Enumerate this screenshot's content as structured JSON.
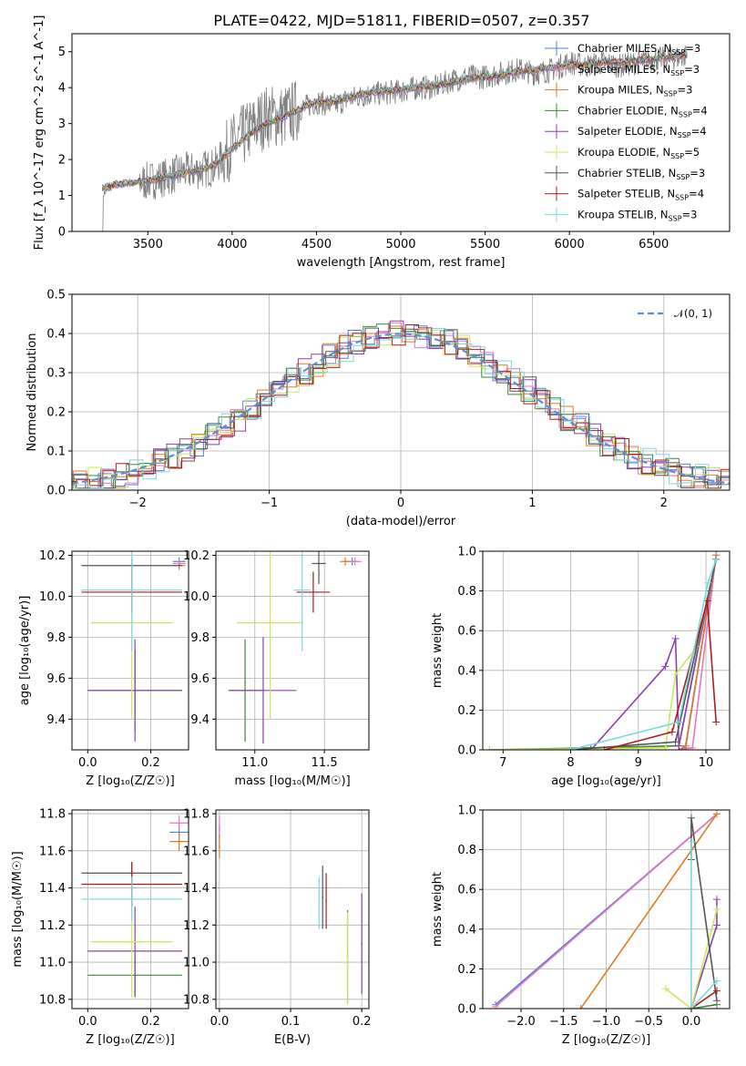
{
  "title": "PLATE=0422, MJD=51811, FIBERID=0507, z=0.357",
  "models": [
    {
      "name": "Chabrier MILES",
      "nssp": "3",
      "color": "#4f7fdc"
    },
    {
      "name": "Salpeter MILES",
      "nssp": "3",
      "color": "#e377c2"
    },
    {
      "name": "Kroupa MILES",
      "nssp": "3",
      "color": "#e07b24"
    },
    {
      "name": "Chabrier ELODIE",
      "nssp": "4",
      "color": "#3a8a3a"
    },
    {
      "name": "Salpeter ELODIE",
      "nssp": "4",
      "color": "#8e3fb0"
    },
    {
      "name": "Kroupa ELODIE",
      "nssp": "5",
      "color": "#c8e85a"
    },
    {
      "name": "Chabrier STELIB",
      "nssp": "3",
      "color": "#555555"
    },
    {
      "name": "Salpeter STELIB",
      "nssp": "4",
      "color": "#b01c1c"
    },
    {
      "name": "Kroupa STELIB",
      "nssp": "3",
      "color": "#7ad8e0"
    }
  ],
  "chart_data": [
    {
      "id": "spectrum",
      "type": "line",
      "xlabel": "wavelength [Angstrom, rest frame]",
      "ylabel": "Flux [f_λ 10^-17 erg cm^-2 s^-1 A^-1]",
      "xlim": [
        3050,
        6950
      ],
      "ylim": [
        0,
        5.5
      ],
      "xticks": [
        3500,
        4000,
        4500,
        5000,
        5500,
        6000,
        6500
      ],
      "yticks": [
        0,
        1,
        2,
        3,
        4,
        5
      ],
      "data_series": {
        "name": "observed spectrum",
        "color": "#808080",
        "x": [
          3230,
          3300,
          3400,
          3500,
          3600,
          3700,
          3800,
          3900,
          4000,
          4100,
          4200,
          4300,
          4400,
          4500,
          4600,
          4700,
          4800,
          4900,
          5000,
          5100,
          5200,
          5300,
          5400,
          5500,
          5600,
          5700,
          5800,
          5900,
          6000,
          6100,
          6200,
          6300,
          6400,
          6500,
          6600,
          6700
        ],
        "y": [
          1.0,
          1.3,
          1.35,
          1.4,
          1.5,
          1.65,
          1.7,
          1.8,
          2.4,
          2.8,
          3.2,
          3.2,
          3.4,
          3.6,
          3.5,
          3.7,
          3.8,
          3.85,
          3.9,
          4.0,
          4.0,
          4.2,
          4.3,
          4.3,
          4.4,
          4.5,
          4.4,
          4.5,
          4.7,
          4.6,
          4.7,
          4.6,
          4.7,
          4.8,
          4.8,
          4.9
        ]
      },
      "model_x": [
        3230,
        3300,
        3400,
        3500,
        3600,
        3700,
        3800,
        3900,
        4000,
        4100,
        4200,
        4300,
        4400,
        4500,
        4600,
        4700,
        4800,
        4900,
        5000,
        5100,
        5200,
        5300,
        5400,
        5500,
        5600,
        5700,
        5800,
        5900,
        6000,
        6100,
        6200,
        6300,
        6400,
        6500,
        6600,
        6700
      ],
      "model_y": [
        1.2,
        1.3,
        1.35,
        1.4,
        1.5,
        1.6,
        1.7,
        1.85,
        2.3,
        2.7,
        3.0,
        3.2,
        3.4,
        3.6,
        3.6,
        3.75,
        3.85,
        3.9,
        3.95,
        4.0,
        4.05,
        4.15,
        4.25,
        4.3,
        4.35,
        4.45,
        4.5,
        4.55,
        4.65,
        4.65,
        4.7,
        4.7,
        4.75,
        4.8,
        4.85,
        4.9
      ]
    },
    {
      "id": "residuals",
      "type": "histogram",
      "xlabel": "(data-model)/error",
      "ylabel": "Normed distribution",
      "xlim": [
        -2.5,
        2.5
      ],
      "ylim": [
        0,
        0.5
      ],
      "xticks": [
        -2,
        -1,
        0,
        1,
        2
      ],
      "yticks": [
        0.0,
        0.1,
        0.2,
        0.3,
        0.4,
        0.5
      ],
      "reference_label": "𝒩(0, 1)",
      "bin_width": 0.1
    },
    {
      "id": "age-vs-Z",
      "type": "scatter",
      "xlabel": "Z [log₁₀(Z/Z☉)]",
      "ylabel": "age  [log₁₀(age/yr)]",
      "xlim": [
        -0.05,
        0.32
      ],
      "ylim": [
        9.25,
        10.22
      ],
      "xticks": [
        0.0,
        0.2
      ],
      "yticks": [
        9.4,
        9.6,
        9.8,
        10.0,
        10.2
      ],
      "points": [
        {
          "model": 0,
          "x": 0.29,
          "y": 10.17,
          "xerr": 0.02,
          "yerr": 0.02
        },
        {
          "model": 1,
          "x": 0.29,
          "y": 10.16,
          "xerr": 0.02,
          "yerr": 0.02
        },
        {
          "model": 2,
          "x": 0.29,
          "y": 10.15,
          "xerr": 0.02,
          "yerr": 0.02
        },
        {
          "model": 3,
          "x": 0.15,
          "y": 9.54,
          "xerr": 0.15,
          "yerr": 0.2
        },
        {
          "model": 4,
          "x": 0.15,
          "y": 9.54,
          "xerr": 0.15,
          "yerr": 0.25
        },
        {
          "model": 5,
          "x": 0.14,
          "y": 9.87,
          "xerr": 0.13,
          "yerr": 0.47
        },
        {
          "model": 6,
          "x": 0.14,
          "y": 10.15,
          "xerr": 0.16,
          "yerr": 0.03
        },
        {
          "model": 7,
          "x": 0.14,
          "y": 10.02,
          "xerr": 0.16,
          "yerr": 0.1
        },
        {
          "model": 8,
          "x": 0.14,
          "y": 10.03,
          "xerr": 0.16,
          "yerr": 0.3
        }
      ]
    },
    {
      "id": "age-vs-mass",
      "type": "scatter",
      "xlabel": "mass [log₁₀(M/M☉)]",
      "ylabel": "",
      "xlim": [
        10.72,
        11.82
      ],
      "ylim": [
        9.25,
        10.22
      ],
      "xticks": [
        11.0,
        11.5
      ],
      "yticks": [
        9.4,
        9.6,
        9.8,
        10.0,
        10.2
      ],
      "points": [
        {
          "model": 0,
          "x": 11.7,
          "y": 10.17,
          "xerr": 0.04,
          "yerr": 0.02
        },
        {
          "model": 1,
          "x": 11.72,
          "y": 10.17,
          "xerr": 0.05,
          "yerr": 0.02
        },
        {
          "model": 2,
          "x": 11.65,
          "y": 10.17,
          "xerr": 0.04,
          "yerr": 0.02
        },
        {
          "model": 3,
          "x": 10.93,
          "y": 9.54,
          "xerr": 0.12,
          "yerr": 0.25
        },
        {
          "model": 4,
          "x": 11.06,
          "y": 9.54,
          "xerr": 0.24,
          "yerr": 0.26
        },
        {
          "model": 5,
          "x": 11.11,
          "y": 9.87,
          "xerr": 0.24,
          "yerr": 0.47
        },
        {
          "model": 6,
          "x": 11.46,
          "y": 10.16,
          "xerr": 0.05,
          "yerr": 0.1
        },
        {
          "model": 7,
          "x": 11.42,
          "y": 10.02,
          "xerr": 0.12,
          "yerr": 0.1
        },
        {
          "model": 8,
          "x": 11.34,
          "y": 10.03,
          "xerr": 0.06,
          "yerr": 0.3
        }
      ]
    },
    {
      "id": "massweight-vs-age",
      "type": "line",
      "xlabel": "age  [log₁₀(age/yr)]",
      "ylabel": "mass weight",
      "xlim": [
        6.7,
        10.35
      ],
      "ylim": [
        0,
        1
      ],
      "xticks": [
        7,
        8,
        9,
        10
      ],
      "yticks": [
        0.0,
        0.2,
        0.4,
        0.6,
        0.8,
        1.0
      ],
      "series": [
        {
          "model": 0,
          "x": [
            9.6,
            9.7,
            10.15
          ],
          "y": [
            0.0,
            0.01,
            0.98
          ]
        },
        {
          "model": 1,
          "x": [
            9.6,
            9.8,
            10.15
          ],
          "y": [
            0.0,
            0.01,
            0.98
          ]
        },
        {
          "model": 2,
          "x": [
            9.6,
            9.7,
            10.15
          ],
          "y": [
            0.0,
            0.02,
            0.98
          ]
        },
        {
          "model": 3,
          "x": [
            6.8,
            8.3,
            9.6,
            10.05,
            10.15
          ],
          "y": [
            0.0,
            0.01,
            0.02,
            0.8,
            0.96
          ]
        },
        {
          "model": 4,
          "x": [
            8.3,
            9.4,
            9.55,
            9.6,
            10.15
          ],
          "y": [
            0.0,
            0.42,
            0.56,
            0.02,
            0.96
          ]
        },
        {
          "model": 5,
          "x": [
            6.8,
            9.4,
            9.55,
            9.87,
            10.15
          ],
          "y": [
            0.0,
            0.01,
            0.38,
            0.52,
            0.96
          ]
        },
        {
          "model": 6,
          "x": [
            8.0,
            9.55,
            10.15
          ],
          "y": [
            0.0,
            0.04,
            0.96
          ]
        },
        {
          "model": 7,
          "x": [
            8.5,
            9.5,
            10.02,
            10.15
          ],
          "y": [
            0.0,
            0.09,
            0.75,
            0.14
          ]
        },
        {
          "model": 8,
          "x": [
            8.0,
            9.6,
            10.03,
            10.15
          ],
          "y": [
            0.0,
            0.14,
            0.84,
            0.96
          ]
        }
      ]
    },
    {
      "id": "mass-vs-Z",
      "type": "scatter",
      "xlabel": "Z [log₁₀(Z/Z☉)]",
      "ylabel": "mass [log₁₀(M/M☉)]",
      "xlim": [
        -0.05,
        0.32
      ],
      "ylim": [
        10.75,
        11.82
      ],
      "xticks": [
        0.0,
        0.2
      ],
      "yticks": [
        10.8,
        11.0,
        11.2,
        11.4,
        11.6,
        11.8
      ],
      "points": [
        {
          "model": 0,
          "x": 0.29,
          "y": 11.7,
          "xerr": 0.03,
          "yerr": 0.04
        },
        {
          "model": 1,
          "x": 0.29,
          "y": 11.75,
          "xerr": 0.03,
          "yerr": 0.04
        },
        {
          "model": 2,
          "x": 0.29,
          "y": 11.65,
          "xerr": 0.03,
          "yerr": 0.05
        },
        {
          "model": 3,
          "x": 0.15,
          "y": 10.93,
          "xerr": 0.15,
          "yerr": 0.12
        },
        {
          "model": 4,
          "x": 0.15,
          "y": 11.06,
          "xerr": 0.15,
          "yerr": 0.24
        },
        {
          "model": 5,
          "x": 0.14,
          "y": 11.11,
          "xerr": 0.13,
          "yerr": 0.3
        },
        {
          "model": 6,
          "x": 0.14,
          "y": 11.48,
          "xerr": 0.16,
          "yerr": 0.06
        },
        {
          "model": 7,
          "x": 0.14,
          "y": 11.42,
          "xerr": 0.16,
          "yerr": 0.12
        },
        {
          "model": 8,
          "x": 0.14,
          "y": 11.34,
          "xerr": 0.16,
          "yerr": 0.12
        }
      ]
    },
    {
      "id": "mass-vs-EBV",
      "type": "scatter",
      "xlabel": "E(B-V)",
      "ylabel": "",
      "xlim": [
        -0.005,
        0.21
      ],
      "ylim": [
        10.75,
        11.82
      ],
      "xticks": [
        0.0,
        0.1,
        0.2
      ],
      "yticks": [
        10.8,
        11.0,
        11.2,
        11.4,
        11.6,
        11.8
      ],
      "points": [
        {
          "model": 0,
          "x": 0.0,
          "y": 11.68,
          "xerr": 0.001,
          "yerr": 0.06
        },
        {
          "model": 1,
          "x": 0.0,
          "y": 11.72,
          "xerr": 0.001,
          "yerr": 0.07
        },
        {
          "model": 2,
          "x": 0.0,
          "y": 11.62,
          "xerr": 0.001,
          "yerr": 0.06
        },
        {
          "model": 3,
          "x": 0.18,
          "y": 11.03,
          "xerr": 0.001,
          "yerr": 0.25
        },
        {
          "model": 4,
          "x": 0.2,
          "y": 11.1,
          "xerr": 0.001,
          "yerr": 0.27
        },
        {
          "model": 5,
          "x": 0.18,
          "y": 11.02,
          "xerr": 0.001,
          "yerr": 0.25
        },
        {
          "model": 6,
          "x": 0.145,
          "y": 11.35,
          "xerr": 0.001,
          "yerr": 0.17
        },
        {
          "model": 7,
          "x": 0.15,
          "y": 11.33,
          "xerr": 0.001,
          "yerr": 0.15
        },
        {
          "model": 8,
          "x": 0.14,
          "y": 11.32,
          "xerr": 0.001,
          "yerr": 0.14
        }
      ]
    },
    {
      "id": "massweight-vs-Z",
      "type": "line",
      "xlabel": "Z [log₁₀(Z/Z☉)]",
      "ylabel": "mass weight",
      "xlim": [
        -2.45,
        0.45
      ],
      "ylim": [
        0,
        1
      ],
      "xticks": [
        -2.0,
        -1.5,
        -1.0,
        -0.5,
        0.0
      ],
      "yticks": [
        0.0,
        0.2,
        0.4,
        0.6,
        0.8,
        1.0
      ],
      "series": [
        {
          "model": 0,
          "x": [
            -2.3,
            0.3
          ],
          "y": [
            0.02,
            0.98
          ]
        },
        {
          "model": 1,
          "x": [
            -2.3,
            0.3
          ],
          "y": [
            0.01,
            0.98
          ]
        },
        {
          "model": 2,
          "x": [
            -1.3,
            0.3
          ],
          "y": [
            0.0,
            0.98
          ]
        },
        {
          "model": 3,
          "x": [
            0.0,
            0.3
          ],
          "y": [
            0.0,
            0.02
          ]
        },
        {
          "model": 4,
          "x": [
            0.0,
            0.3,
            0.3
          ],
          "y": [
            0.0,
            0.42,
            0.55
          ]
        },
        {
          "model": 5,
          "x": [
            -0.3,
            0.0,
            0.3
          ],
          "y": [
            0.1,
            0.0,
            0.5
          ]
        },
        {
          "model": 6,
          "x": [
            0.0,
            0.0,
            0.3
          ],
          "y": [
            0.75,
            0.96,
            0.04
          ]
        },
        {
          "model": 7,
          "x": [
            0.0,
            0.3
          ],
          "y": [
            0.0,
            0.09
          ]
        },
        {
          "model": 8,
          "x": [
            0.0,
            0.0,
            0.3
          ],
          "y": [
            0.84,
            0.0,
            0.14
          ]
        }
      ]
    }
  ]
}
